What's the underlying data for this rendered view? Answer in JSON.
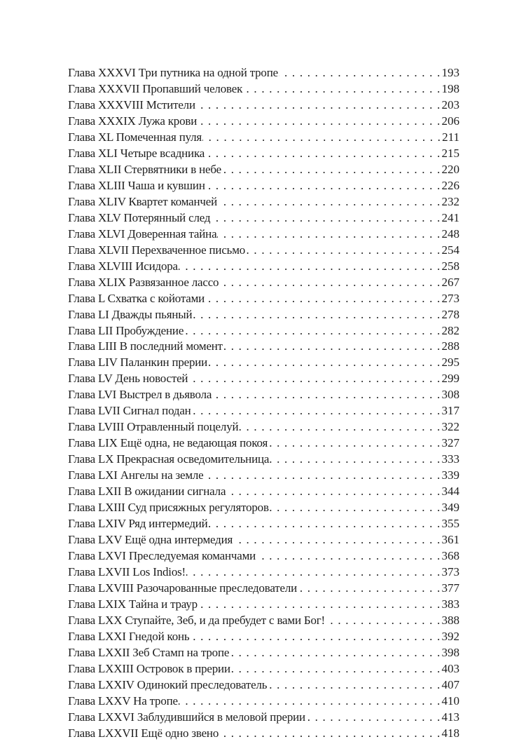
{
  "toc": {
    "entries": [
      {
        "title": "Глава XXXVI Три путника на одной тропе",
        "page": "193"
      },
      {
        "title": "Глава XXXVII Пропавший человек",
        "page": "198"
      },
      {
        "title": "Глава XXXVIII Мстители",
        "page": "203"
      },
      {
        "title": "Глава XXXIX Лужа крови",
        "page": "206"
      },
      {
        "title": "Глава XL Помеченная пуля",
        "page": "211"
      },
      {
        "title": "Глава XLI Четыре всадника",
        "page": "215"
      },
      {
        "title": "Глава XLII Стервятники в небе",
        "page": "220"
      },
      {
        "title": "Глава XLIII Чаша и кувшин",
        "page": "226"
      },
      {
        "title": "Глава XLIV Квартет команчей",
        "page": "232"
      },
      {
        "title": "Глава XLV Потерянный след",
        "page": "241"
      },
      {
        "title": "Глава XLVI Доверенная тайна",
        "page": "248"
      },
      {
        "title": "Глава XLVII Перехваченное письмо",
        "page": "254"
      },
      {
        "title": "Глава XLVIII Исидора",
        "page": "258"
      },
      {
        "title": "Глава XLIX Развязанное лассо",
        "page": "267"
      },
      {
        "title": "Глава L Схватка с койотами",
        "page": "273"
      },
      {
        "title": "Глава LI Дважды пьяный",
        "page": "278"
      },
      {
        "title": "Глава LII Пробуждение",
        "page": "282"
      },
      {
        "title": "Глава LIII В последний момент",
        "page": "288"
      },
      {
        "title": "Глава LIV Паланкин прерии",
        "page": "295"
      },
      {
        "title": "Глава LV День новостей",
        "page": "299"
      },
      {
        "title": "Глава LVI Выстрел в дьявола",
        "page": "308"
      },
      {
        "title": "Глава LVII Сигнал подан",
        "page": "317"
      },
      {
        "title": "Глава LVIII Отравленный поцелуй",
        "page": "322"
      },
      {
        "title": "Глава LIX Ещё одна, не ведающая покоя",
        "page": "327"
      },
      {
        "title": "Глава LX Прекрасная осведомительница",
        "page": "333"
      },
      {
        "title": "Глава LXI Ангелы на земле",
        "page": "339"
      },
      {
        "title": "Глава LXII В ожидании сигнала",
        "page": "344"
      },
      {
        "title": "Глава LXIII Суд присяжных регуляторов",
        "page": "349"
      },
      {
        "title": "Глава LXIV Ряд интермедий",
        "page": "355"
      },
      {
        "title": "Глава LXV Ещё одна интермедия",
        "page": "361"
      },
      {
        "title": "Глава LXVI Преследуемая команчами",
        "page": "368"
      },
      {
        "title": "Глава LXVII Los Indios!",
        "page": "373"
      },
      {
        "title": "Глава LXVIII Разочарованные преследователи",
        "page": "377"
      },
      {
        "title": "Глава LXIX Тайна и траур",
        "page": "383"
      },
      {
        "title": "Глава LXX Ступайте, Зеб, и да пребудет с вами Бог!",
        "page": "388"
      },
      {
        "title": "Глава LXXI Гнедой конь",
        "page": "392"
      },
      {
        "title": "Глава LXXII Зеб Стамп на тропе",
        "page": "398"
      },
      {
        "title": "Глава LXXIII Островок в прерии",
        "page": "403"
      },
      {
        "title": "Глава LXXIV Одинокий преследователь",
        "page": "407"
      },
      {
        "title": "Глава LXXV На тропе",
        "page": "410"
      },
      {
        "title": "Глава LXXVI Заблудившийся в меловой прерии",
        "page": "413"
      },
      {
        "title": "Глава LXXVII Ещё одно звено",
        "page": "418"
      }
    ]
  }
}
